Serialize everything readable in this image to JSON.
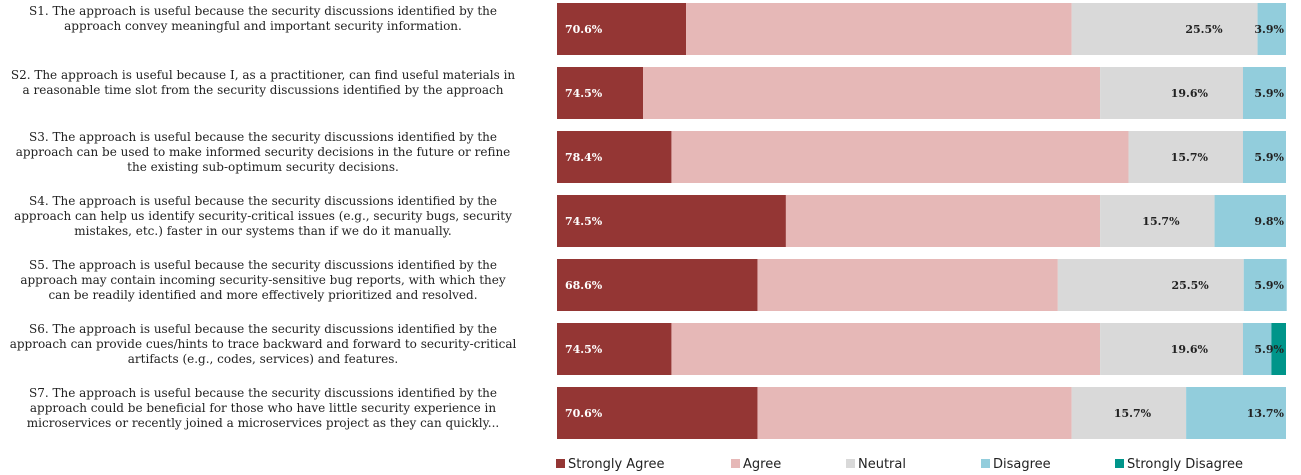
{
  "chart_data": {
    "type": "bar",
    "orientation": "horizontal",
    "stacked": true,
    "legend_position": "bottom",
    "grid": false,
    "xlim": [
      0,
      100
    ],
    "categories": [
      {
        "id": "S1",
        "lines": [
          "S1. The approach is useful because the security discussions identified by the",
          "approach convey meaningful and important security information."
        ]
      },
      {
        "id": "S2",
        "lines": [
          "S2. The approach is useful because I, as a practitioner, can find useful materials in",
          "a reasonable time slot from the security discussions identified by the approach"
        ]
      },
      {
        "id": "S3",
        "lines": [
          "S3. The approach is useful because the security discussions identified by the",
          "approach can be used to make informed security decisions in the future or refine",
          "the existing sub-optimum security decisions."
        ]
      },
      {
        "id": "S4",
        "lines": [
          "S4. The approach is useful because the security discussions identified by the",
          "approach can help us identify security-critical issues (e.g., security bugs, security",
          "mistakes, etc.) faster in our systems than if we do it manually."
        ]
      },
      {
        "id": "S5",
        "lines": [
          "S5. The approach is useful because the security discussions identified by the",
          "approach may contain incoming security-sensitive bug reports, with which they",
          "can be readily identified and more effectively prioritized and resolved."
        ]
      },
      {
        "id": "S6",
        "lines": [
          "S6. The approach is useful because the security discussions identified by the",
          "approach can provide cues/hints to trace backward and forward to security-critical",
          "artifacts (e.g., codes, services) and features."
        ]
      },
      {
        "id": "S7",
        "lines": [
          "S7. The approach is useful because the security discussions identified by the",
          "approach could be beneficial for those who have little security experience in",
          "microservices or recently joined a microservices project as they can quickly..."
        ]
      }
    ],
    "series": [
      {
        "name": "Strongly Agree",
        "color": "#943634",
        "values": [
          17.7,
          11.8,
          15.7,
          31.4,
          27.5,
          15.7,
          27.5
        ]
      },
      {
        "name": "Agree",
        "color": "#e6b8b7",
        "values": [
          52.9,
          62.7,
          62.7,
          43.1,
          41.2,
          58.8,
          43.1
        ]
      },
      {
        "name": "Neutral",
        "color": "#d9d9d9",
        "values": [
          25.5,
          19.6,
          15.7,
          15.7,
          25.5,
          19.6,
          15.7
        ]
      },
      {
        "name": "Disagree",
        "color": "#92cddc",
        "values": [
          3.9,
          5.9,
          5.9,
          9.8,
          5.9,
          3.9,
          13.7
        ]
      },
      {
        "name": "Strongly Disagree",
        "color": "#00958a",
        "values": [
          0,
          0,
          0,
          0,
          0,
          2.0,
          0
        ]
      }
    ],
    "bar_labels": {
      "agree_total": [
        "70.6%",
        "74.5%",
        "78.4%",
        "74.5%",
        "68.6%",
        "74.5%",
        "70.6%"
      ],
      "neutral": [
        "25.5%",
        "19.6%",
        "15.7%",
        "15.7%",
        "25.5%",
        "19.6%",
        "15.7%"
      ],
      "disagree_total": [
        "3.9%",
        "5.9%",
        "5.9%",
        "9.8%",
        "5.9%",
        "5.9%",
        "13.7%"
      ]
    }
  }
}
